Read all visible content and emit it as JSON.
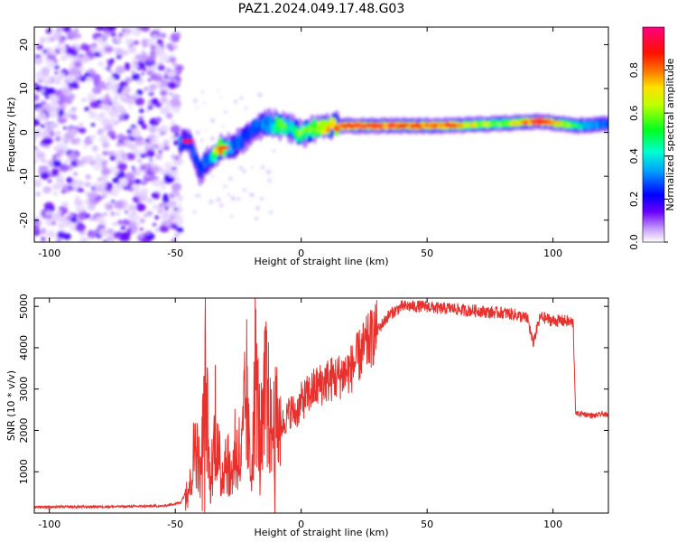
{
  "title": "PAZ1.2024.049.17.48.G03",
  "colors": {
    "snr_line": "#e8302c",
    "axis": "#000000",
    "colormap": [
      "#ffffff",
      "#9b30ff",
      "#0000ff",
      "#00e5ff",
      "#00ff40",
      "#ffff00",
      "#ff6000",
      "#ff0000",
      "#ff007f"
    ]
  },
  "chart_data": [
    {
      "type": "heatmap",
      "xlabel": "Height of straight line (km)",
      "ylabel": "Frequency (Hz)",
      "xlim": [
        -106,
        122
      ],
      "ylim": [
        -25,
        24
      ],
      "xticks": [
        -100,
        -50,
        0,
        50,
        100
      ],
      "yticks": [
        -20,
        -10,
        0,
        10,
        20
      ],
      "grid": false,
      "description_of_ridge": [
        {
          "x": -48,
          "f": -2.0,
          "amp": 0.35
        },
        {
          "x": -44,
          "f": -2.5,
          "amp": 0.3
        },
        {
          "x": -40,
          "f": -9.0,
          "amp": 0.35
        },
        {
          "x": -37,
          "f": -6.0,
          "amp": 0.35
        },
        {
          "x": -32,
          "f": -3.5,
          "amp": 0.75
        },
        {
          "x": -28,
          "f": -3.5,
          "amp": 0.4
        },
        {
          "x": -22,
          "f": -1.0,
          "amp": 0.3
        },
        {
          "x": -18,
          "f": 1.5,
          "amp": 0.35
        },
        {
          "x": -12,
          "f": 2.0,
          "amp": 0.4
        },
        {
          "x": -8,
          "f": 1.5,
          "amp": 0.6
        },
        {
          "x": -4,
          "f": 1.0,
          "amp": 0.45
        },
        {
          "x": 0,
          "f": -0.5,
          "amp": 0.55
        },
        {
          "x": 5,
          "f": 1.0,
          "amp": 0.55
        },
        {
          "x": 12,
          "f": 1.5,
          "amp": 0.8
        },
        {
          "x": 30,
          "f": 1.5,
          "amp": 0.85
        },
        {
          "x": 55,
          "f": 1.5,
          "amp": 0.8
        },
        {
          "x": 80,
          "f": 2.0,
          "amp": 0.55
        },
        {
          "x": 95,
          "f": 2.5,
          "amp": 0.95
        },
        {
          "x": 110,
          "f": 1.5,
          "amp": 0.45
        },
        {
          "x": 122,
          "f": 2.0,
          "amp": 0.35
        }
      ]
    },
    {
      "type": "colorbar",
      "label": "Normalized spectral amplitude",
      "ylim": [
        0,
        1
      ],
      "ticks": [
        "0.0",
        "0.2",
        "0.4",
        "0.6",
        "0.8"
      ]
    },
    {
      "type": "line",
      "xlabel": "Height of straight line (km)",
      "ylabel": "SNR (10 * v/v)",
      "xlim": [
        -106,
        122
      ],
      "ylim": [
        0,
        5200
      ],
      "xticks": [
        -100,
        -50,
        0,
        50,
        100
      ],
      "yticks": [
        1000,
        2000,
        3000,
        4000,
        5000
      ],
      "grid": false,
      "series": [
        {
          "x": [
            -106,
            -90,
            -70,
            -55,
            -48,
            -44,
            -42,
            -40,
            -38,
            -36,
            -34,
            -32,
            -30,
            -28,
            -26,
            -24,
            -22,
            -20,
            -18,
            -16,
            -14,
            -12,
            -10,
            -8,
            -6,
            -4,
            -2,
            0,
            5,
            10,
            15,
            20,
            25,
            30,
            35,
            40,
            45,
            50,
            55,
            60,
            65,
            70,
            75,
            80,
            85,
            90,
            92,
            95,
            100,
            105,
            108,
            109,
            112,
            116,
            120,
            122
          ],
          "y": [
            150,
            150,
            160,
            170,
            250,
            700,
            1800,
            900,
            3000,
            500,
            2200,
            700,
            1400,
            800,
            1600,
            1100,
            2800,
            900,
            3300,
            1500,
            3200,
            1900,
            2200,
            2100,
            2300,
            2500,
            2400,
            2700,
            3000,
            3200,
            3300,
            3500,
            4000,
            4400,
            4800,
            5000,
            5000,
            5000,
            4950,
            4950,
            4900,
            4900,
            4850,
            4850,
            4800,
            4700,
            4100,
            4750,
            4650,
            4650,
            4600,
            2400,
            2400,
            2350,
            2400,
            2350
          ]
        }
      ]
    }
  ]
}
